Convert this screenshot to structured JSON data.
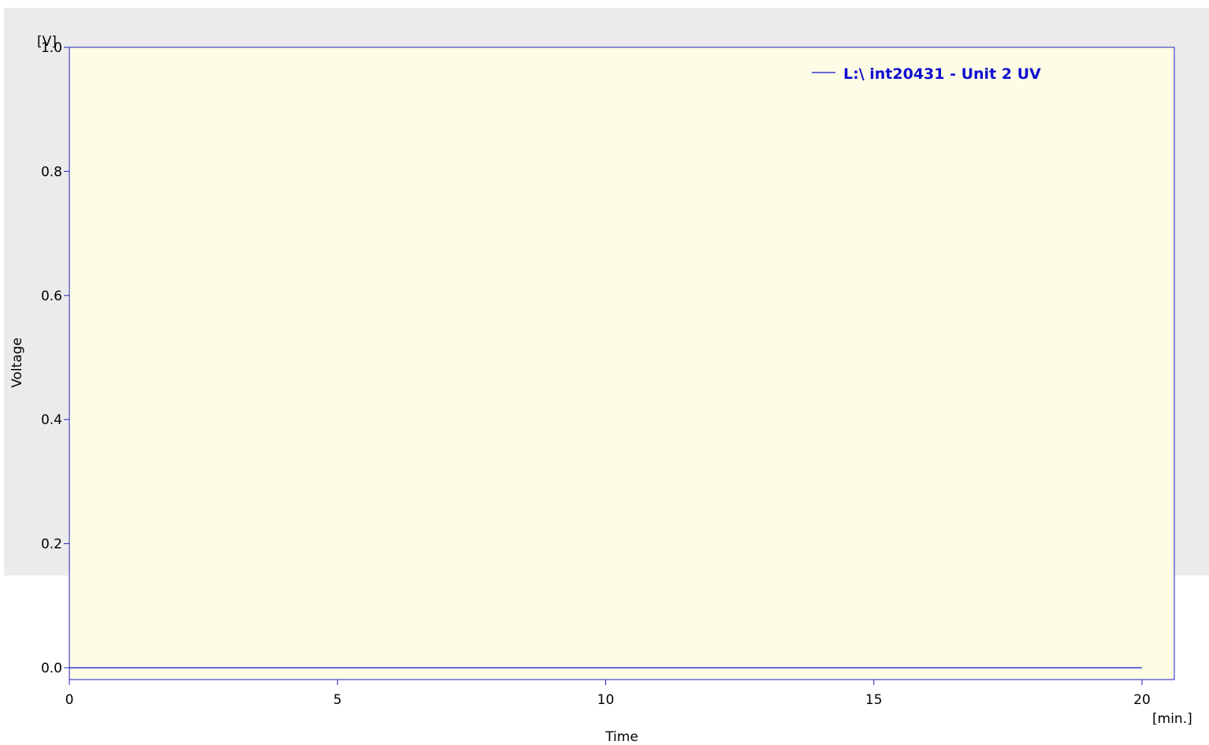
{
  "chart_data": {
    "type": "line",
    "title": "",
    "xlabel": "Time",
    "ylabel": "Voltage",
    "x_unit": "[min.]",
    "y_unit": "[V]",
    "xlim": [
      0,
      20.6
    ],
    "ylim": [
      -0.02,
      1.0
    ],
    "x_ticks": [
      0,
      5,
      10,
      15,
      20
    ],
    "x_tick_labels": [
      "0",
      "5",
      "10",
      "15",
      "20"
    ],
    "y_ticks": [
      0.0,
      0.2,
      0.4,
      0.6,
      0.8,
      1.0
    ],
    "y_tick_labels": [
      "0.0",
      "0.2",
      "0.4",
      "0.6",
      "0.8",
      "1.0"
    ],
    "grid": false,
    "legend_position": "top-right",
    "series": [
      {
        "name": "L:\\ int20431 - Unit 2 UV",
        "color": "#1010d0",
        "x": [
          0,
          5,
          10,
          15,
          20
        ],
        "y": [
          0.0,
          0.0,
          0.0,
          0.0,
          0.0
        ]
      }
    ]
  },
  "colors": {
    "plot_background": "#fdfde6",
    "page_panel": "#ebebeb",
    "axis": "#2020c0",
    "series": "#1010d0"
  }
}
